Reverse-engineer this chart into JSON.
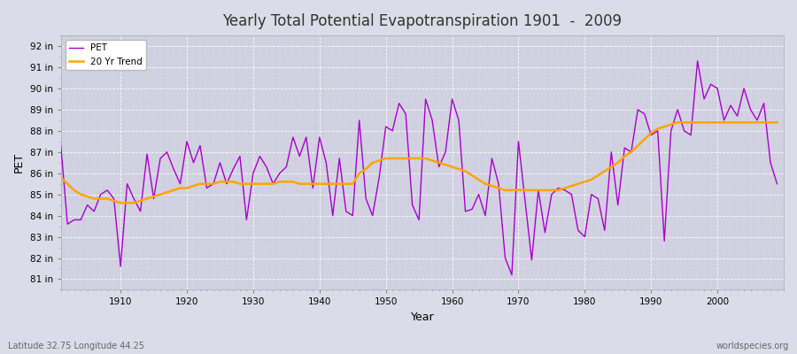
{
  "title": "Yearly Total Potential Evapotranspiration 1901  -  2009",
  "xlabel": "Year",
  "ylabel": "PET",
  "subtitle_left": "Latitude 32.75 Longitude 44.25",
  "subtitle_right": "worldspecies.org",
  "pet_color": "#aa00cc",
  "trend_color": "#FFA500",
  "fig_bg_color": "#dcdce8",
  "plot_bg_color": "#d0d0e0",
  "ylim": [
    80.5,
    92.5
  ],
  "yticks": [
    81,
    82,
    83,
    84,
    85,
    86,
    87,
    88,
    89,
    90,
    91,
    92
  ],
  "ytick_labels": [
    "81 in",
    "82 in",
    "83 in",
    "84 in",
    "85 in",
    "86 in",
    "87 in",
    "88 in",
    "89 in",
    "90 in",
    "91 in",
    "92 in"
  ],
  "xlim": [
    1901,
    2010
  ],
  "years": [
    1901,
    1902,
    1903,
    1904,
    1905,
    1906,
    1907,
    1908,
    1909,
    1910,
    1911,
    1912,
    1913,
    1914,
    1915,
    1916,
    1917,
    1918,
    1919,
    1920,
    1921,
    1922,
    1923,
    1924,
    1925,
    1926,
    1927,
    1928,
    1929,
    1930,
    1931,
    1932,
    1933,
    1934,
    1935,
    1936,
    1937,
    1938,
    1939,
    1940,
    1941,
    1942,
    1943,
    1944,
    1945,
    1946,
    1947,
    1948,
    1949,
    1950,
    1951,
    1952,
    1953,
    1954,
    1955,
    1956,
    1957,
    1958,
    1959,
    1960,
    1961,
    1962,
    1963,
    1964,
    1965,
    1966,
    1967,
    1968,
    1969,
    1970,
    1971,
    1972,
    1973,
    1974,
    1975,
    1976,
    1977,
    1978,
    1979,
    1980,
    1981,
    1982,
    1983,
    1984,
    1985,
    1986,
    1987,
    1988,
    1989,
    1990,
    1991,
    1992,
    1993,
    1994,
    1995,
    1996,
    1997,
    1998,
    1999,
    2000,
    2001,
    2002,
    2003,
    2004,
    2005,
    2006,
    2007,
    2008,
    2009
  ],
  "pet_values": [
    87.3,
    83.6,
    83.8,
    83.8,
    84.5,
    84.2,
    85.0,
    85.2,
    84.8,
    81.6,
    85.5,
    84.8,
    84.2,
    86.9,
    84.8,
    86.7,
    87.0,
    86.2,
    85.5,
    87.5,
    86.5,
    87.3,
    85.3,
    85.5,
    86.5,
    85.5,
    86.2,
    86.8,
    83.8,
    86.0,
    86.8,
    86.3,
    85.5,
    86.0,
    86.3,
    87.7,
    86.8,
    87.7,
    85.3,
    87.7,
    86.5,
    84.0,
    86.7,
    84.2,
    84.0,
    88.5,
    84.8,
    84.0,
    85.8,
    88.2,
    88.0,
    89.3,
    88.8,
    84.5,
    83.8,
    89.5,
    88.5,
    86.3,
    87.0,
    89.5,
    88.5,
    84.2,
    84.3,
    85.0,
    84.0,
    86.7,
    85.5,
    82.0,
    81.2,
    87.5,
    84.7,
    81.9,
    85.2,
    83.2,
    85.0,
    85.3,
    85.2,
    85.0,
    83.3,
    83.0,
    85.0,
    84.8,
    83.3,
    87.0,
    84.5,
    87.2,
    87.0,
    89.0,
    88.8,
    87.8,
    88.0,
    82.8,
    88.0,
    89.0,
    88.0,
    87.8,
    91.3,
    89.5,
    90.2,
    90.0,
    88.5,
    89.2,
    88.7,
    90.0,
    89.0,
    88.5,
    89.3,
    86.5,
    85.5
  ],
  "trend_years": [
    1901,
    1902,
    1903,
    1904,
    1905,
    1906,
    1907,
    1908,
    1909,
    1910,
    1911,
    1912,
    1913,
    1914,
    1915,
    1916,
    1917,
    1918,
    1919,
    1920,
    1921,
    1922,
    1923,
    1924,
    1925,
    1926,
    1927,
    1928,
    1929,
    1930,
    1931,
    1932,
    1933,
    1934,
    1935,
    1936,
    1937,
    1938,
    1939,
    1940,
    1941,
    1942,
    1943,
    1944,
    1945,
    1946,
    1947,
    1948,
    1949,
    1950,
    1951,
    1952,
    1953,
    1954,
    1955,
    1956,
    1957,
    1958,
    1959,
    1960,
    1961,
    1962,
    1963,
    1964,
    1965,
    1966,
    1967,
    1968,
    1969,
    1970,
    1971,
    1972,
    1973,
    1974,
    1975,
    1976,
    1977,
    1978,
    1979,
    1980,
    1981,
    1982,
    1983,
    1984,
    1985,
    1986,
    1987,
    1988,
    1989,
    1990,
    1991,
    1992,
    1993,
    1994,
    1995,
    1996,
    1997,
    1998,
    1999,
    2000,
    2001,
    2002,
    2003,
    2004,
    2005,
    2006,
    2007,
    2008,
    2009
  ],
  "trend_values": [
    85.8,
    85.5,
    85.2,
    85.0,
    84.9,
    84.8,
    84.8,
    84.8,
    84.7,
    84.6,
    84.6,
    84.6,
    84.7,
    84.8,
    84.9,
    85.0,
    85.1,
    85.2,
    85.3,
    85.3,
    85.4,
    85.5,
    85.5,
    85.5,
    85.6,
    85.6,
    85.6,
    85.5,
    85.5,
    85.5,
    85.5,
    85.5,
    85.5,
    85.6,
    85.6,
    85.6,
    85.5,
    85.5,
    85.5,
    85.5,
    85.5,
    85.5,
    85.5,
    85.5,
    85.5,
    86.0,
    86.2,
    86.5,
    86.6,
    86.7,
    86.7,
    86.7,
    86.7,
    86.7,
    86.7,
    86.7,
    86.6,
    86.5,
    86.4,
    86.3,
    86.2,
    86.1,
    85.9,
    85.7,
    85.5,
    85.4,
    85.3,
    85.2,
    85.2,
    85.2,
    85.2,
    85.2,
    85.2,
    85.2,
    85.2,
    85.2,
    85.3,
    85.4,
    85.5,
    85.6,
    85.7,
    85.9,
    86.1,
    86.3,
    86.5,
    86.8,
    87.0,
    87.3,
    87.6,
    87.9,
    88.1,
    88.2,
    88.3,
    88.4,
    88.4,
    88.4,
    88.4,
    88.4,
    88.4,
    88.4,
    88.4,
    88.4,
    88.4,
    88.4,
    88.4,
    88.4,
    88.4,
    88.4,
    88.4
  ]
}
